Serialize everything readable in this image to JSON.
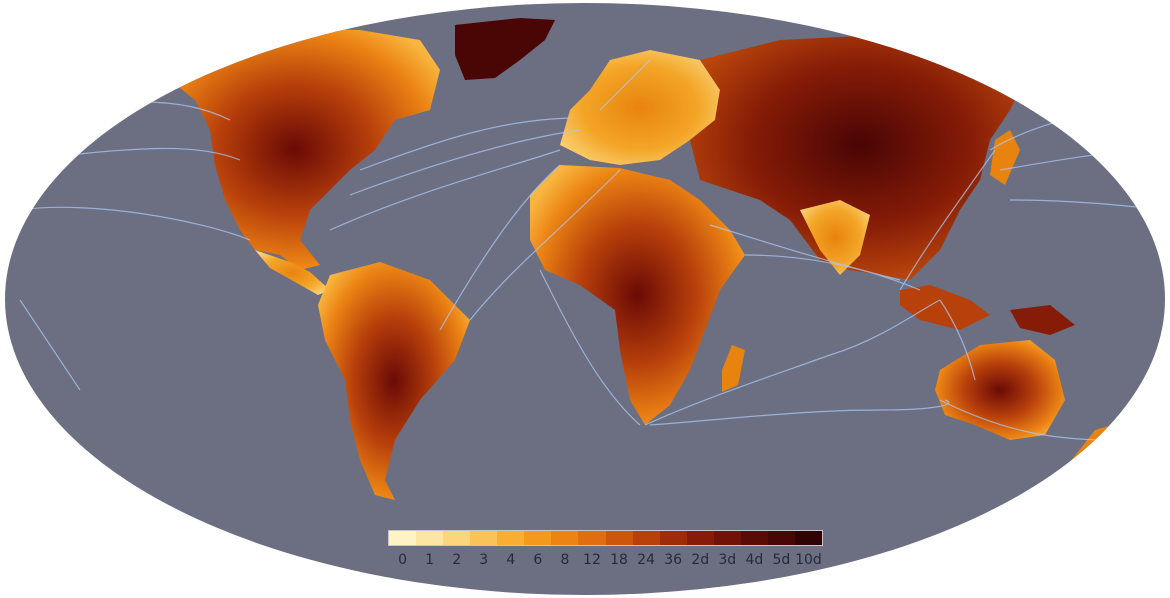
{
  "colors": {
    "ocean": "#6c6e82",
    "background": "#ffffff",
    "shipping_routes": "#a9c9f2",
    "land_low": "#fde9a8",
    "land_mid": "#e8830f",
    "land_high": "#4a0505"
  },
  "legend": {
    "ticks": [
      {
        "label": "0",
        "color": "#fff3c4"
      },
      {
        "label": "1",
        "color": "#fde6a3"
      },
      {
        "label": "2",
        "color": "#fcd57c"
      },
      {
        "label": "3",
        "color": "#fbc357"
      },
      {
        "label": "4",
        "color": "#f8ad33"
      },
      {
        "label": "6",
        "color": "#f3991c"
      },
      {
        "label": "8",
        "color": "#ec8414"
      },
      {
        "label": "12",
        "color": "#df6e10"
      },
      {
        "label": "18",
        "color": "#cd560d"
      },
      {
        "label": "24",
        "color": "#b8400b"
      },
      {
        "label": "36",
        "color": "#9f2c09"
      },
      {
        "label": "2d",
        "color": "#861c07"
      },
      {
        "label": "3d",
        "color": "#701206"
      },
      {
        "label": "4d",
        "color": "#5b0b05"
      },
      {
        "label": "5d",
        "color": "#480604"
      },
      {
        "label": "10d",
        "color": "#300303"
      }
    ]
  }
}
